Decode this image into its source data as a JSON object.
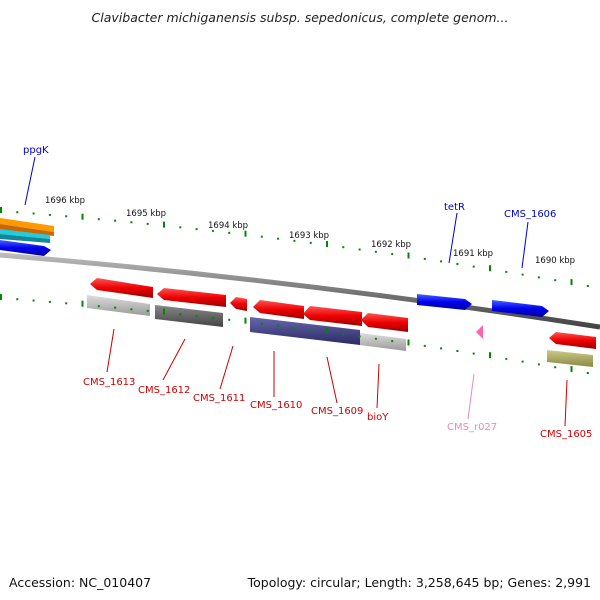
{
  "title": "Clavibacter michiganensis subsp. sepedonicus, complete genom...",
  "footer": {
    "accession": "Accession: NC_010407",
    "summary": "Topology: circular; Length: 3,258,645 bp; Genes: 2,991"
  },
  "scale_labels": [
    "1696 kbp",
    "1695 kbp",
    "1694 kbp",
    "1693 kbp",
    "1692 kbp",
    "1691 kbp",
    "1690 kbp"
  ],
  "genes_top": [
    {
      "name": "ppgK",
      "color": "#0000cc"
    },
    {
      "name": "tetR",
      "color": "#0000cc"
    },
    {
      "name": "CMS_1606",
      "color": "#0000cc"
    }
  ],
  "genes_bottom": [
    {
      "name": "CMS_1613",
      "color": "#cc0000"
    },
    {
      "name": "CMS_1612",
      "color": "#cc0000"
    },
    {
      "name": "CMS_1611",
      "color": "#cc0000"
    },
    {
      "name": "CMS_1610",
      "color": "#cc0000"
    },
    {
      "name": "CMS_1609",
      "color": "#cc0000"
    },
    {
      "name": "bioY",
      "color": "#cc0000"
    },
    {
      "name": "CMS_r027",
      "color": "#ee88bb"
    },
    {
      "name": "CMS_1605",
      "color": "#cc0000"
    }
  ],
  "colors": {
    "gene_forward": "#0000ee",
    "gene_reverse": "#ee0000",
    "rna": "#ff66aa",
    "tick": "#008800",
    "backbone": "#888888"
  }
}
